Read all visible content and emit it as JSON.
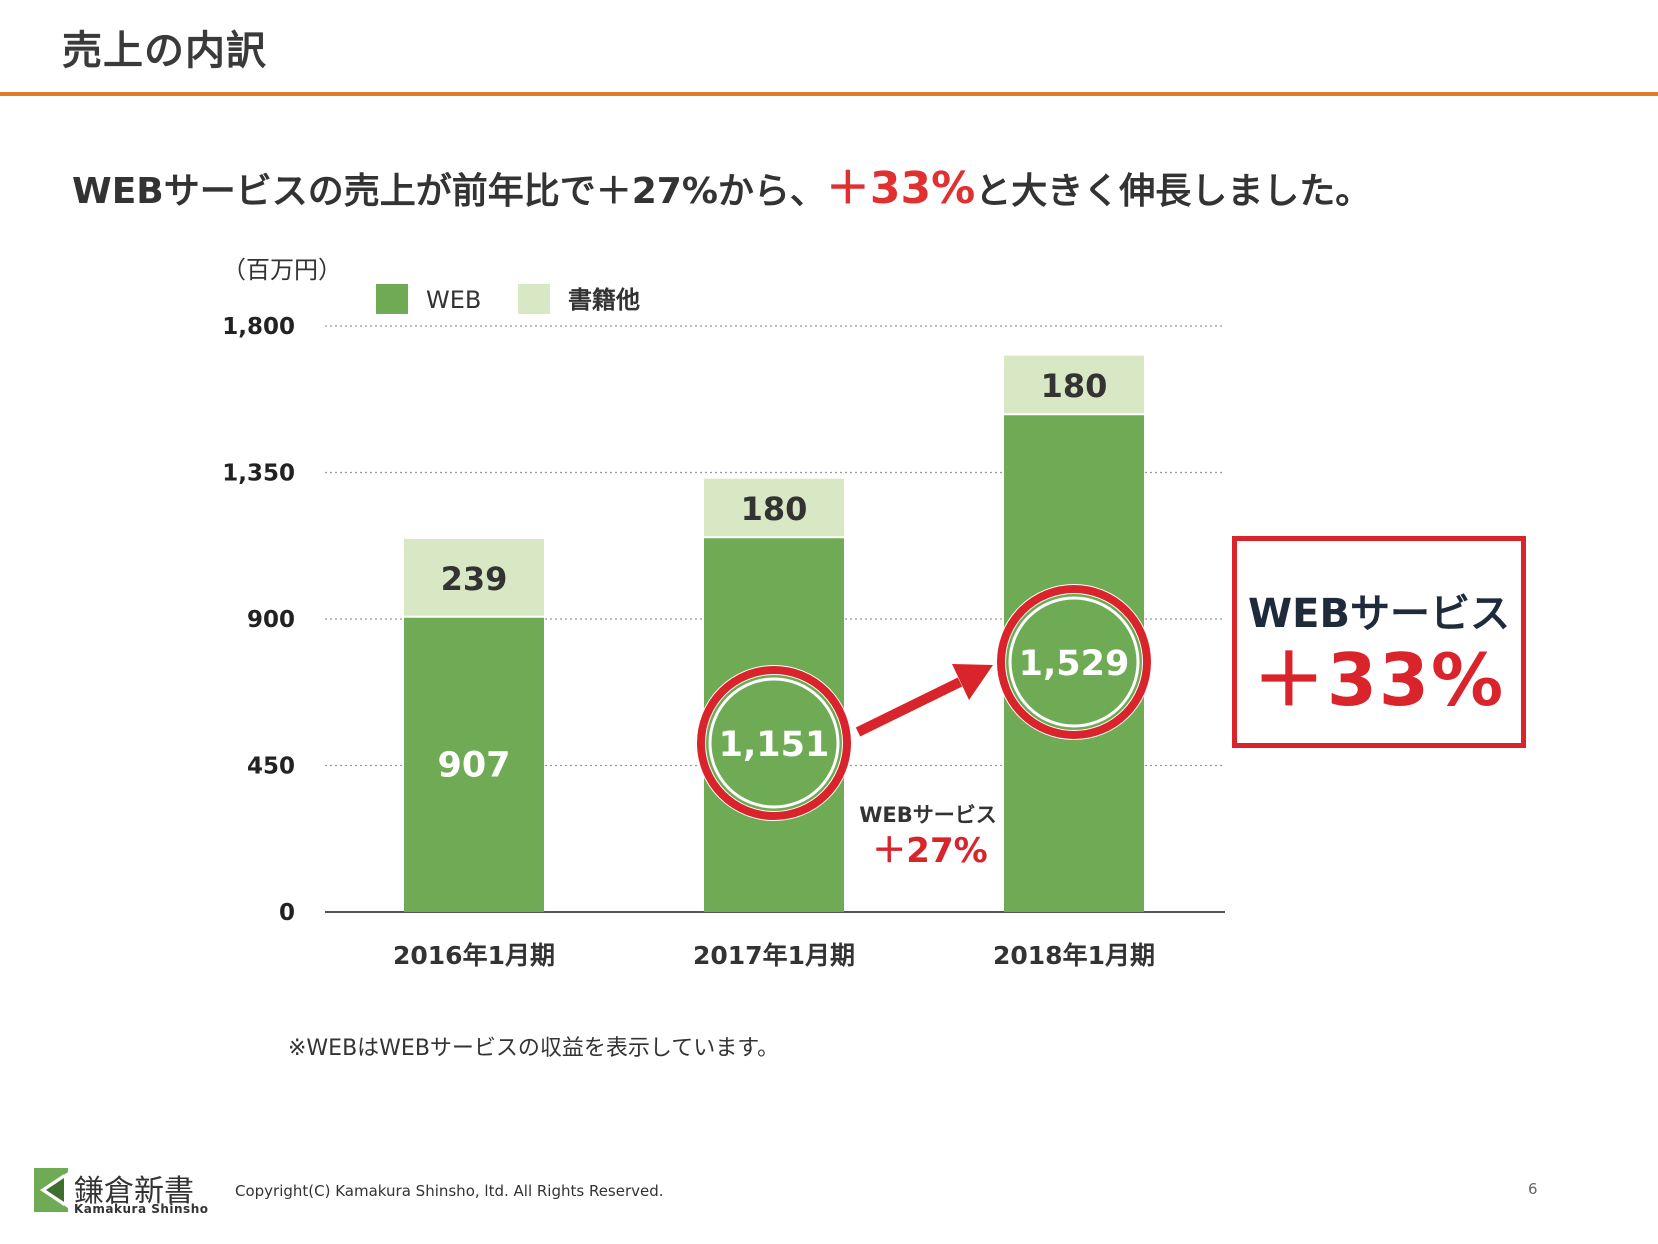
{
  "page": {
    "title": "売上の内訳",
    "headline_prefix": "WEBサービスの売上が前年比で＋27%から、",
    "headline_highlight": "＋33%",
    "headline_suffix": "と大きく伸長しました。",
    "note": "※WEBはWEBサービスの収益を表示しています。",
    "accent_color": "#e07b2a",
    "highlight_color": "#e03030"
  },
  "summary_box": {
    "label": "WEBサービス",
    "value": "＋33%"
  },
  "chart_data": {
    "type": "bar",
    "stacked": true,
    "unit_label": "（百万円）",
    "categories": [
      "2016年1月期",
      "2017年1月期",
      "2018年1月期"
    ],
    "series": [
      {
        "name": "WEB",
        "values": [
          907,
          1151,
          1529
        ],
        "color": "#6fab54"
      },
      {
        "name": "書籍他",
        "values": [
          239,
          180,
          180
        ],
        "color": "#d9e8c4"
      }
    ],
    "ylim": [
      0,
      1800
    ],
    "yticks": [
      0,
      450,
      900,
      1350,
      1800
    ],
    "ytick_labels": [
      "0",
      "450",
      "900",
      "1,350",
      "1,800"
    ],
    "web_labels": [
      "907",
      "1,151",
      "1,529"
    ],
    "other_labels": [
      "239",
      "180",
      "180"
    ],
    "highlighted_categories": [
      1,
      2
    ],
    "growth_annotation": {
      "label": "WEBサービス",
      "value": "＋27%"
    },
    "grid": true,
    "legend": "top-left"
  },
  "footer": {
    "logo_name": "鎌倉新書",
    "logo_roman": "Kamakura Shinsho",
    "copyright": "Copyright(C) Kamakura Shinsho, ltd. All Rights Reserved.",
    "page_number": "6"
  }
}
